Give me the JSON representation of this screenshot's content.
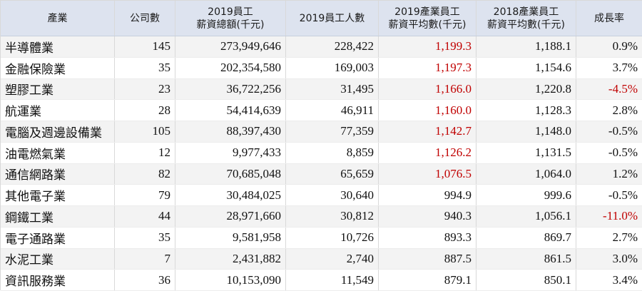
{
  "table": {
    "headers": [
      [
        "產業"
      ],
      [
        "公司數"
      ],
      [
        "2019員工",
        "薪資總額(千元)"
      ],
      [
        "2019員工人數"
      ],
      [
        "2019產業員工",
        "薪資平均數(千元)"
      ],
      [
        "2018產業員工",
        "薪資平均數(千元)"
      ],
      [
        "成長率"
      ]
    ],
    "rows": [
      {
        "industry": "半導體業",
        "companies": "145",
        "total_salary_2019": "273,949,646",
        "employees_2019": "228,422",
        "avg_2019": "1,199.3",
        "avg_2018": "1,188.1",
        "growth": "0.9%",
        "avg_2019_red": true,
        "growth_red": false
      },
      {
        "industry": "金融保險業",
        "companies": "35",
        "total_salary_2019": "202,354,580",
        "employees_2019": "169,003",
        "avg_2019": "1,197.3",
        "avg_2018": "1,154.6",
        "growth": "3.7%",
        "avg_2019_red": true,
        "growth_red": false
      },
      {
        "industry": "塑膠工業",
        "companies": "23",
        "total_salary_2019": "36,722,256",
        "employees_2019": "31,495",
        "avg_2019": "1,166.0",
        "avg_2018": "1,220.8",
        "growth": "-4.5%",
        "avg_2019_red": true,
        "growth_red": true
      },
      {
        "industry": "航運業",
        "companies": "28",
        "total_salary_2019": "54,414,639",
        "employees_2019": "46,911",
        "avg_2019": "1,160.0",
        "avg_2018": "1,128.3",
        "growth": "2.8%",
        "avg_2019_red": true,
        "growth_red": false
      },
      {
        "industry": "電腦及週邊設備業",
        "companies": "105",
        "total_salary_2019": "88,397,430",
        "employees_2019": "77,359",
        "avg_2019": "1,142.7",
        "avg_2018": "1,148.0",
        "growth": "-0.5%",
        "avg_2019_red": true,
        "growth_red": false
      },
      {
        "industry": "油電燃氣業",
        "companies": "12",
        "total_salary_2019": "9,977,433",
        "employees_2019": "8,859",
        "avg_2019": "1,126.2",
        "avg_2018": "1,131.5",
        "growth": "-0.5%",
        "avg_2019_red": true,
        "growth_red": false
      },
      {
        "industry": "通信網路業",
        "companies": "82",
        "total_salary_2019": "70,685,048",
        "employees_2019": "65,659",
        "avg_2019": "1,076.5",
        "avg_2018": "1,064.0",
        "growth": "1.2%",
        "avg_2019_red": true,
        "growth_red": false
      },
      {
        "industry": "其他電子業",
        "companies": "79",
        "total_salary_2019": "30,484,025",
        "employees_2019": "30,640",
        "avg_2019": "994.9",
        "avg_2018": "999.6",
        "growth": "-0.5%",
        "avg_2019_red": false,
        "growth_red": false
      },
      {
        "industry": "鋼鐵工業",
        "companies": "44",
        "total_salary_2019": "28,971,660",
        "employees_2019": "30,812",
        "avg_2019": "940.3",
        "avg_2018": "1,056.1",
        "growth": "-11.0%",
        "avg_2019_red": false,
        "growth_red": true
      },
      {
        "industry": "電子通路業",
        "companies": "35",
        "total_salary_2019": "9,581,958",
        "employees_2019": "10,726",
        "avg_2019": "893.3",
        "avg_2018": "869.7",
        "growth": "2.7%",
        "avg_2019_red": false,
        "growth_red": false
      },
      {
        "industry": "水泥工業",
        "companies": "7",
        "total_salary_2019": "2,431,882",
        "employees_2019": "2,740",
        "avg_2019": "887.5",
        "avg_2018": "861.5",
        "growth": "3.0%",
        "avg_2019_red": false,
        "growth_red": false
      },
      {
        "industry": "資訊服務業",
        "companies": "36",
        "total_salary_2019": "10,153,090",
        "employees_2019": "11,549",
        "avg_2019": "879.1",
        "avg_2018": "850.1",
        "growth": "3.4%",
        "avg_2019_red": false,
        "growth_red": false
      }
    ]
  },
  "colors": {
    "header_bg": "#dde3ef",
    "highlight_red": "#c00000",
    "stripe": "#f3f3f3"
  }
}
